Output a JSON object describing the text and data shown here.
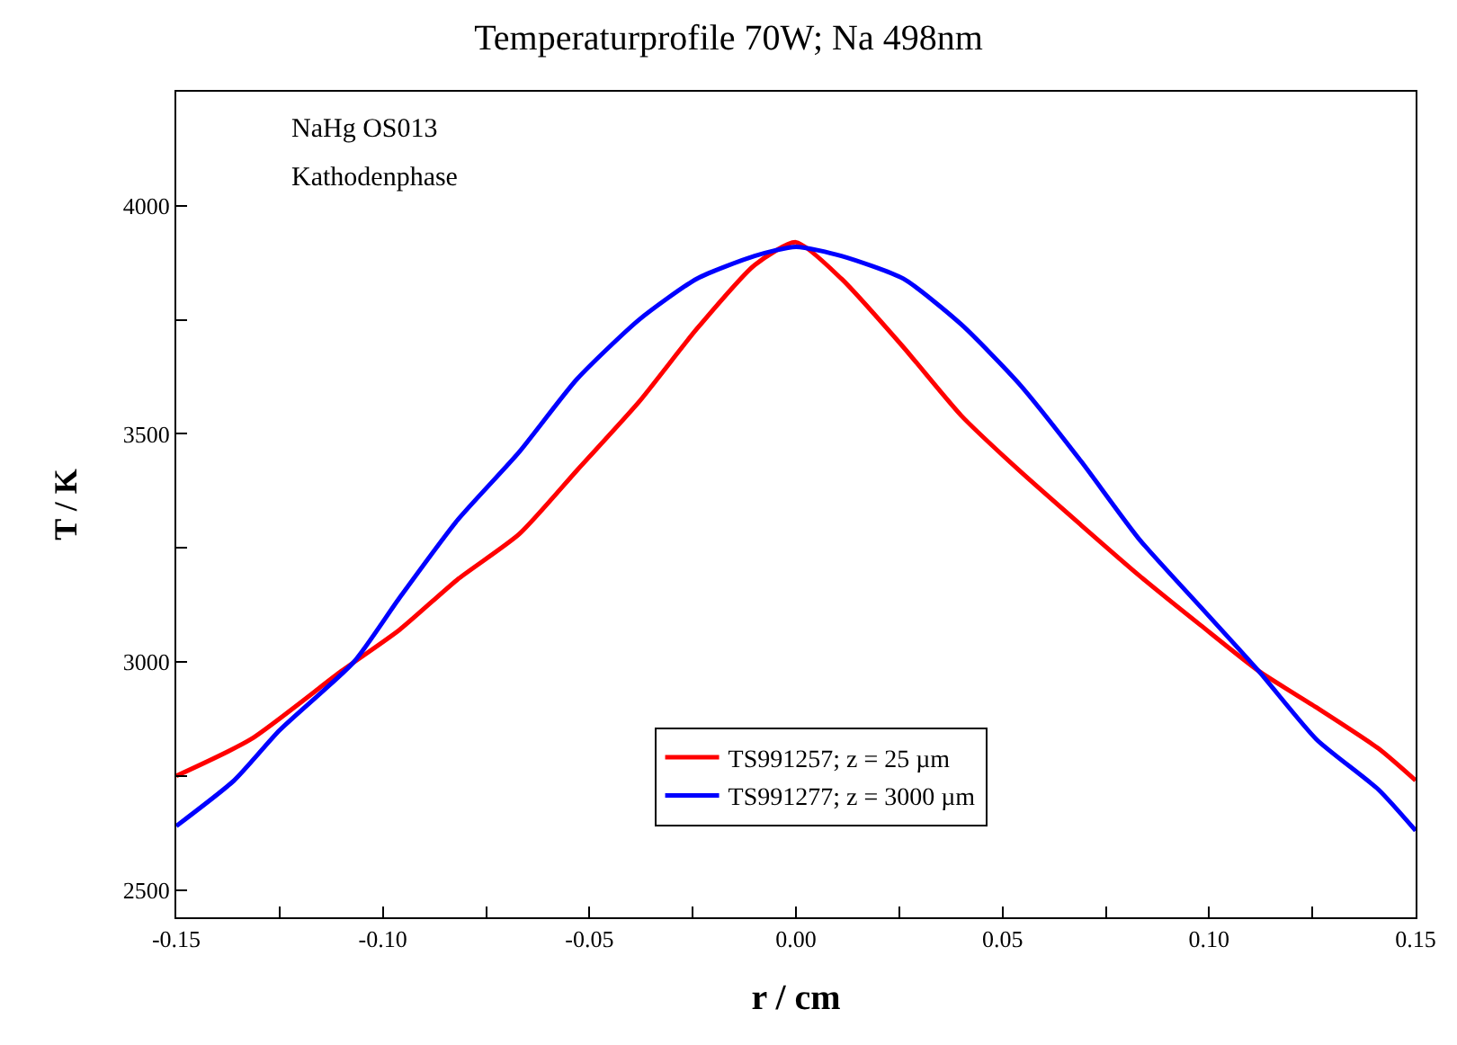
{
  "chart_data": {
    "type": "line",
    "title": "Temperaturprofile 70W; Na 498nm",
    "xlabel": "r / cm",
    "ylabel": "T / K",
    "annotations": [
      "NaHg OS013",
      "Kathodenphase"
    ],
    "xlim": [
      -0.15,
      0.15
    ],
    "xticks": [
      -0.15,
      {
        "value": -0.125,
        "label": null
      },
      "-0.10",
      {
        "value": -0.075,
        "label": null
      },
      -0.05,
      {
        "value": -0.025,
        "label": null
      },
      "0.00",
      {
        "value": 0.025,
        "label": null
      },
      0.05,
      {
        "value": 0.075,
        "label": null
      },
      "0.10",
      {
        "value": 0.125,
        "label": null
      },
      0.15
    ],
    "ylim": [
      2440,
      4250
    ],
    "yticks": [
      2500,
      {
        "value": 2750,
        "label": null
      },
      3000,
      {
        "value": 3250,
        "label": null
      },
      3500,
      {
        "value": 3750,
        "label": null
      },
      4000
    ],
    "legend": "bottom",
    "marker": "none",
    "line_style": "solid",
    "series": [
      {
        "name": "TS991257; z = 25 µm",
        "color": "#ff0000",
        "x": [
          -0.15,
          -0.132,
          -0.11,
          -0.096,
          -0.082,
          -0.067,
          -0.053,
          -0.038,
          -0.024,
          -0.01,
          0.0,
          0.011,
          0.026,
          0.04,
          0.054,
          0.069,
          0.083,
          0.098,
          0.112,
          0.126,
          0.141,
          0.15
        ],
        "values": [
          2750,
          2830,
          2980,
          3070,
          3180,
          3280,
          3420,
          3570,
          3730,
          3870,
          3920,
          3840,
          3690,
          3540,
          3420,
          3300,
          3190,
          3080,
          2980,
          2900,
          2810,
          2740
        ]
      },
      {
        "name": "TS991277; z = 3000 µm",
        "color": "#0000ff",
        "x": [
          -0.15,
          -0.136,
          -0.125,
          -0.107,
          -0.096,
          -0.082,
          -0.067,
          -0.053,
          -0.038,
          -0.024,
          -0.01,
          0.0,
          0.011,
          0.026,
          0.04,
          0.054,
          0.069,
          0.083,
          0.098,
          0.112,
          0.126,
          0.141,
          0.15
        ],
        "values": [
          2640,
          2740,
          2850,
          3000,
          3140,
          3310,
          3460,
          3620,
          3750,
          3840,
          3890,
          3910,
          3890,
          3840,
          3740,
          3610,
          3440,
          3270,
          3120,
          2980,
          2830,
          2720,
          2630
        ]
      }
    ]
  }
}
